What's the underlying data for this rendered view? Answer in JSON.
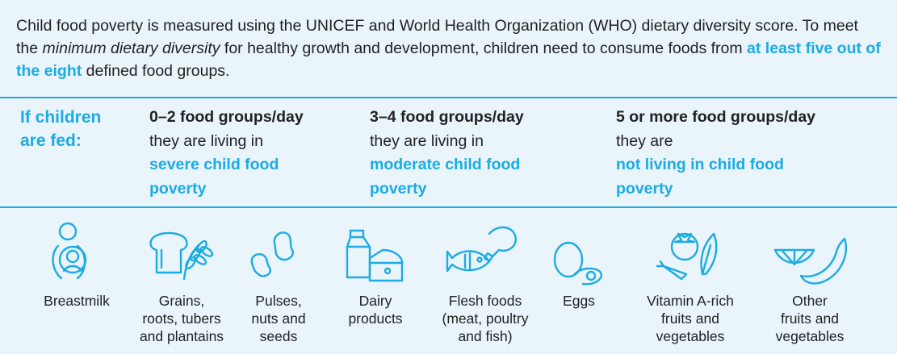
{
  "intro": {
    "part1": "Child food poverty is measured using the UNICEF and World Health Organization (WHO) dietary diversity score. To meet the ",
    "emphasis": "minimum dietary diversity",
    "part2": " for healthy growth and development, children need to consume foods from ",
    "highlight": "at least five out of the eight",
    "part3": " defined food groups."
  },
  "fed_label": {
    "line1": "If children",
    "line2": "are fed:"
  },
  "columns": [
    {
      "heading": "0–2 food groups/day",
      "sub": "they are living in",
      "status_line1": "severe child food",
      "status_line2": "poverty"
    },
    {
      "heading": "3–4 food groups/day",
      "sub": "they are living in",
      "status_line1": "moderate child food",
      "status_line2": "poverty"
    },
    {
      "heading": "5 or more food groups/day",
      "sub": "they are",
      "status_line1": "not living in child food",
      "status_line2": "poverty"
    }
  ],
  "food_groups": [
    {
      "icon": "breastfeeding-icon",
      "lines": [
        "Breastmilk"
      ]
    },
    {
      "icon": "bread-wheat-icon",
      "lines": [
        "Grains,",
        "roots, tubers",
        "and plantains"
      ]
    },
    {
      "icon": "beans-icon",
      "lines": [
        "Pulses,",
        "nuts and",
        "seeds"
      ]
    },
    {
      "icon": "milk-carton-cheese-icon",
      "lines": [
        "Dairy",
        "products"
      ]
    },
    {
      "icon": "meat-fish-icon",
      "lines": [
        "Flesh foods",
        "(meat, poultry",
        "and fish)"
      ]
    },
    {
      "icon": "egg-icon",
      "lines": [
        "Eggs"
      ]
    },
    {
      "icon": "tomato-carrot-leaf-icon",
      "lines": [
        "Vitamin A-rich",
        "fruits and",
        "vegetables"
      ]
    },
    {
      "icon": "orange-banana-icon",
      "lines": [
        "Other",
        "fruits and",
        "vegetables"
      ]
    }
  ],
  "colors": {
    "accent": "#1cabe2",
    "background": "#e9f4fb",
    "text": "#222222"
  }
}
